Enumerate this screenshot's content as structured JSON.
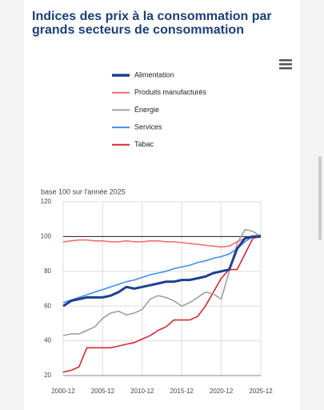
{
  "chart_data": {
    "type": "line",
    "title": "Indices des prix à la consommation par grands secteurs de consommation",
    "y_label": "base 100 sur l'année 2025",
    "x": [
      "2000-12",
      "2001-12",
      "2002-12",
      "2003-12",
      "2004-12",
      "2005-12",
      "2006-12",
      "2007-12",
      "2008-12",
      "2009-12",
      "2010-12",
      "2011-12",
      "2012-12",
      "2013-12",
      "2014-12",
      "2015-12",
      "2016-12",
      "2017-12",
      "2018-12",
      "2019-12",
      "2020-12",
      "2021-12",
      "2022-12",
      "2023-12",
      "2024-12",
      "2025-12"
    ],
    "series": [
      {
        "name": "Alimentation",
        "color": "#1f3f8f",
        "values": [
          60,
          63,
          64,
          65,
          65,
          65,
          66,
          68,
          71,
          70,
          71,
          72,
          73,
          74,
          74,
          75,
          75,
          76,
          77,
          79,
          80,
          81,
          93,
          99,
          100,
          100
        ]
      },
      {
        "name": "Produits manufacturés",
        "color": "#f27070",
        "values": [
          97,
          97.5,
          98,
          98,
          97.5,
          97.5,
          97,
          97,
          97.5,
          97,
          97,
          97.5,
          97.5,
          97,
          97,
          96.5,
          96,
          95.5,
          95,
          94.5,
          94,
          94.5,
          97,
          99,
          100,
          100
        ]
      },
      {
        "name": "Énergie",
        "color": "#a0a0a0",
        "values": [
          43,
          44,
          44,
          46,
          48,
          53,
          56,
          57,
          55,
          56,
          58,
          64,
          66,
          65,
          63,
          60,
          62,
          65,
          68,
          67,
          64,
          80,
          96,
          104,
          103,
          100
        ]
      },
      {
        "name": "Services",
        "color": "#3f8fef",
        "values": [
          62,
          63.5,
          65,
          66.5,
          68,
          69.5,
          71,
          72.5,
          74,
          75,
          76.5,
          78,
          79,
          80,
          81.5,
          82.5,
          83.5,
          85,
          86,
          87.5,
          88.5,
          90,
          93,
          97,
          100,
          101
        ]
      },
      {
        "name": "Tabac",
        "color": "#d42a36",
        "values": [
          22,
          23,
          25,
          36,
          36,
          36,
          36,
          37,
          38,
          39,
          41,
          43,
          46,
          48,
          52,
          52,
          52,
          54,
          60,
          68,
          76,
          81,
          81,
          90,
          99,
          100
        ]
      }
    ],
    "xlim": [
      "2000-12",
      "2025-12"
    ],
    "xticks": [
      "2000-12",
      "2005-12",
      "2010-12",
      "2015-12",
      "2020-12",
      "2025-12"
    ],
    "ylim": [
      20,
      120
    ],
    "yticks": [
      20,
      40,
      60,
      80,
      100,
      120
    ],
    "reference_line": 100,
    "grid": true
  }
}
